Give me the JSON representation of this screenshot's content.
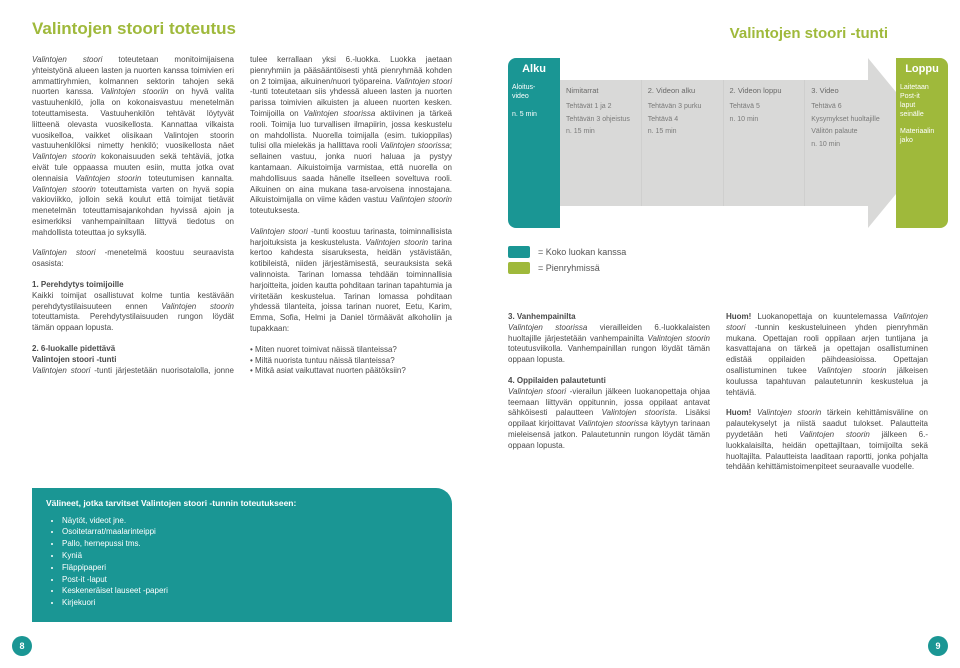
{
  "leftPage": {
    "title": "Valintojen stoori toteutus",
    "body_html": "<p><em>Valintojen stoori</em> toteutetaan monitoimijaisena yhteistyönä alueen lasten ja nuorten kanssa toimivien eri ammattiryhmien, kolmannen sektorin tahojen sekä nuorten kanssa. <em>Valintojen stooriin</em> on hyvä valita vastuuhenkilö, jolla on kokonaisvastuu menetelmän toteuttamisesta. Vastuuhenkilön tehtävät löytyvät liitteenä olevasta vuosikellosta. Kannattaa vilkaista vuosikelloa, vaikket olisikaan Valintojen stoorin vastuuhenkilöksi nimetty henkilö; vuosikellosta näet <em>Valintojen stoorin</em> kokonaisuuden sekä tehtäviä, jotka eivät tule oppaassa muuten esiin, mutta jotka ovat olennaisia <em>Valintojen stoorin</em> toteutumisen kannalta. <em>Valintojen stoorin</em> toteuttamista varten on hyvä sopia vakioviikko, jolloin sekä koulut että toimijat tietävät menetelmän toteuttamisajankohdan hyvissä ajoin ja esimerkiksi vanhempainiltaan liittyvä tiedotus on mahdollista toteuttaa jo syksyllä.</p><p><em>Valintojen stoori</em> -menetelmä koostuu seuraavista osasista:</p><p><strong>1. Perehdytys toimijoille</strong><br>Kaikki toimijat osallistuvat kolme tuntia kestävään perehdytystilaisuuteen ennen <em>Valintojen stoorin</em> toteuttamista. Perehdytystilaisuuden rungon löydät tämän oppaan lopusta.</p><p><strong>2. 6-luokalle pidettävä<br>Valintojen stoori -tunti</strong><br><em>Valintojen stoori</em> -tunti järjestetään nuorisotalolla, jonne tulee kerrallaan yksi 6.-luokka. Luokka jaetaan pienryhmiin ja pääsääntöisesti yhtä pienryhmää kohden on 2 toimijaa, aikuinen/nuori työpareina. <em>Valintojen stoori</em> -tunti toteutetaan siis yhdessä alueen lasten ja nuorten parissa toimivien aikuisten ja alueen nuorten kesken. Toimijoilla on <em>Valintojen stoorissa</em> aktiivinen ja tärkeä rooli. Toimija luo turvallisen ilmapiirin, jossa keskustelu on mahdollista. Nuorella toimijalla (esim. tukioppilas) tulisi olla mielekäs ja hallittava rooli <em>Valintojen stoorissa</em>; sellainen vastuu, jonka nuori haluaa ja pystyy kantamaan. Aikuistoimija varmistaa, että nuorella on mahdollisuus saada hänelle itselleen soveltuva rooli. Aikuinen on aina mukana tasa-arvoisena innostajana. Aikuistoimijalla on viime käden vastuu <em>Valintojen stoorin</em> toteutuksesta.</p><p><em>Valintojen stoori</em> -tunti koostuu tarinasta, toiminnallisista harjoituksista ja keskustelusta. <em>Valintojen stoorin</em> tarina kertoo kahdesta sisaruksesta, heidän ystävistään, kotibileistä, niiden järjestämisestä, seurauksista sekä valinnoista. Tarinan lomassa tehdään toiminnallisia harjoitteita, joiden kautta pohditaan tarinan tapahtumia ja viritetään keskustelua. Tarinan lomassa pohditaan yhdessä tilanteita, joissa tarinan nuoret, Eetu, Karim, Emma, Sofia, Helmi ja Daniel törmäävät alkoholiin ja tupakkaan:</p><div class='bul-list'><div>Miten nuoret toimivat näissä tilanteissa?</div><div>Miltä nuorista tuntuu näissä tilanteissa?</div><div>Mitkä asiat vaikuttavat nuorten päätöksiin?</div></div>",
    "materials": {
      "title": "Välineet, jotka tarvitset Valintojen stoori -tunnin toteutukseen:",
      "items": [
        "Näytöt, videot jne.",
        "Osoitetarrat/maalarinteippi",
        "Pallo, hernepussi tms.",
        "Kyniä",
        "Fläppipaperi",
        "Post-it -laput",
        "Keskeneräiset lauseet -paperi",
        "Kirjekuori"
      ]
    },
    "pageNumber": "8"
  },
  "rightPage": {
    "diagram": {
      "title": "Valintojen stoori -tunti",
      "start_label": "Alku",
      "end_label": "Loppu",
      "start_detail": "Aloitus-\nvideo\n\nn. 5 min",
      "end_detail": "Laitetaan\nPost-it\nlaput\nseinälle\n\nMateriaalin\njako",
      "stages": [
        {
          "head": "Nimitarrat",
          "lines": [
            "Tehtävät 1 ja 2",
            "",
            "Tehtävän 3 ohjeistus",
            "",
            "n. 15 min"
          ]
        },
        {
          "head": "2. Videon alku",
          "lines": [
            "Tehtävän 3 purku",
            "",
            "Tehtävä 4",
            "",
            "n. 15 min"
          ]
        },
        {
          "head": "2. Videon loppu",
          "lines": [
            "Tehtävä 5",
            "",
            "n. 10 min"
          ]
        },
        {
          "head": "3. Video",
          "lines": [
            "Tehtävä 6",
            "",
            "Kysymykset huoltajille",
            "",
            "Välitön palaute",
            "",
            "n. 10 min"
          ]
        }
      ],
      "legend1": "= Koko luokan kanssa",
      "legend2": "= Pienryhmissä",
      "colors": {
        "teal": "#1a9694",
        "green": "#9fb93b",
        "grey": "#d9d9d8"
      }
    },
    "body_html": "<p><strong>3. Vanhempainilta</strong><br><em>Valintojen stoorissa</em> vierailleiden 6.-luokkalaisten huoltajille järjestetään vanhempainilta <em>Valintojen stoorin</em> toteutusviikolla. Vanhempainillan rungon löydät tämän oppaan lopusta.</p><p><strong>4. Oppilaiden palautetunti</strong><br><em>Valintojen stoori</em> -vierailun jälkeen luokanopettaja ohjaa teemaan liittyvän oppitunnin, jossa oppilaat antavat sähköisesti palautteen <em>Valintojen stoorista</em>. Lisäksi oppilaat kirjoittavat <em>Valintojen stoorissa</em> käytyyn tarinaan mieleisensä jatkon. Palautetunnin rungon löydät tämän oppaan lopusta.</p><p><strong>Huom!</strong> Luokanopettaja on kuuntelemassa <em>Valintojen stoori</em> -tunnin keskusteluineen yhden pienryhmän mukana. Opettajan rooli oppilaan arjen tuntijana ja kasvattajana on tärkeä ja opettajan osallistuminen edistää oppilaiden päihdeasioissa. Opettajan osallistuminen tukee <em>Valintojen stoorin</em> jälkeisen koulussa tapahtuvan palautetunnin keskustelua ja tehtäviä.</p><p><strong>Huom!</strong> <em>Valintojen stoorin</em> tärkein kehittämisväline on palautekyselyt ja niistä saadut tulokset. Palautteita pyydetään heti <em>Valintojen stoorin</em> jälkeen 6.-luokkalaisilta, heidän opettajiltaan, toimijoilta sekä huoltajilta. Palautteista laaditaan raportti, jonka pohjalta tehdään kehittämistoimenpiteet seuraavalle vuodelle.</p>",
    "pageNumber": "9"
  }
}
